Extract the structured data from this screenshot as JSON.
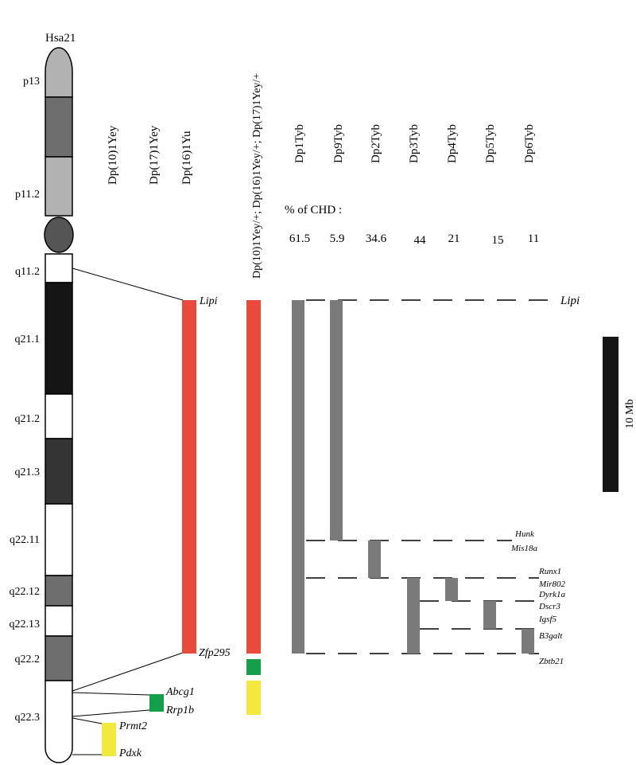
{
  "chromosome": {
    "name": "Hsa21",
    "bands": [
      "p13",
      "p11.2",
      "q11.2",
      "q21.1",
      "q21.2",
      "q21.3",
      "q22.11",
      "q22.12",
      "q22.13",
      "q22.2",
      "q22.3"
    ]
  },
  "mouse_models": {
    "dp10": "Dp(10)1Yey",
    "dp17": "Dp(17)1Yey",
    "dp16": "Dp(16)1Yu",
    "combined": "Dp(10)1Yey/+; Dp(16)1Yey/+; Dp(17)1Yey/+"
  },
  "tyb_models": [
    "Dp1Tyb",
    "Dp9Tyb",
    "Dp2Tyb",
    "Dp3Tyb",
    "Dp4Tyb",
    "Dp5Tyb",
    "Dp6Tyb"
  ],
  "chd": {
    "label": "% of CHD :",
    "values": [
      "61.5",
      "5.9",
      "34.6",
      "44",
      "21",
      "15",
      "11"
    ]
  },
  "genes_left": {
    "lipi": "Lipi",
    "zfp295": "Zfp295",
    "abcg1": "Abcg1",
    "rrp1b": "Rrp1b",
    "prmt2": "Prmt2",
    "pdxk": "Pdxk"
  },
  "genes_right": {
    "lipi": "Lipi",
    "hunk": "Hunk",
    "mis18a": "Mis18a",
    "runx1": "Runx1",
    "mir802": "Mir802",
    "dyrk1a": "Dyrk1a",
    "dscr3": "Dscr3",
    "igsf5": "Igsf5",
    "b3galt": "B3galt",
    "zbtb21": "Zbtb21"
  },
  "scale_bar": "10 Mb",
  "colors": {
    "red": "#e84a3c",
    "green": "#14a04a",
    "yellow": "#f3e83c",
    "gray": "#7a7a7a"
  }
}
